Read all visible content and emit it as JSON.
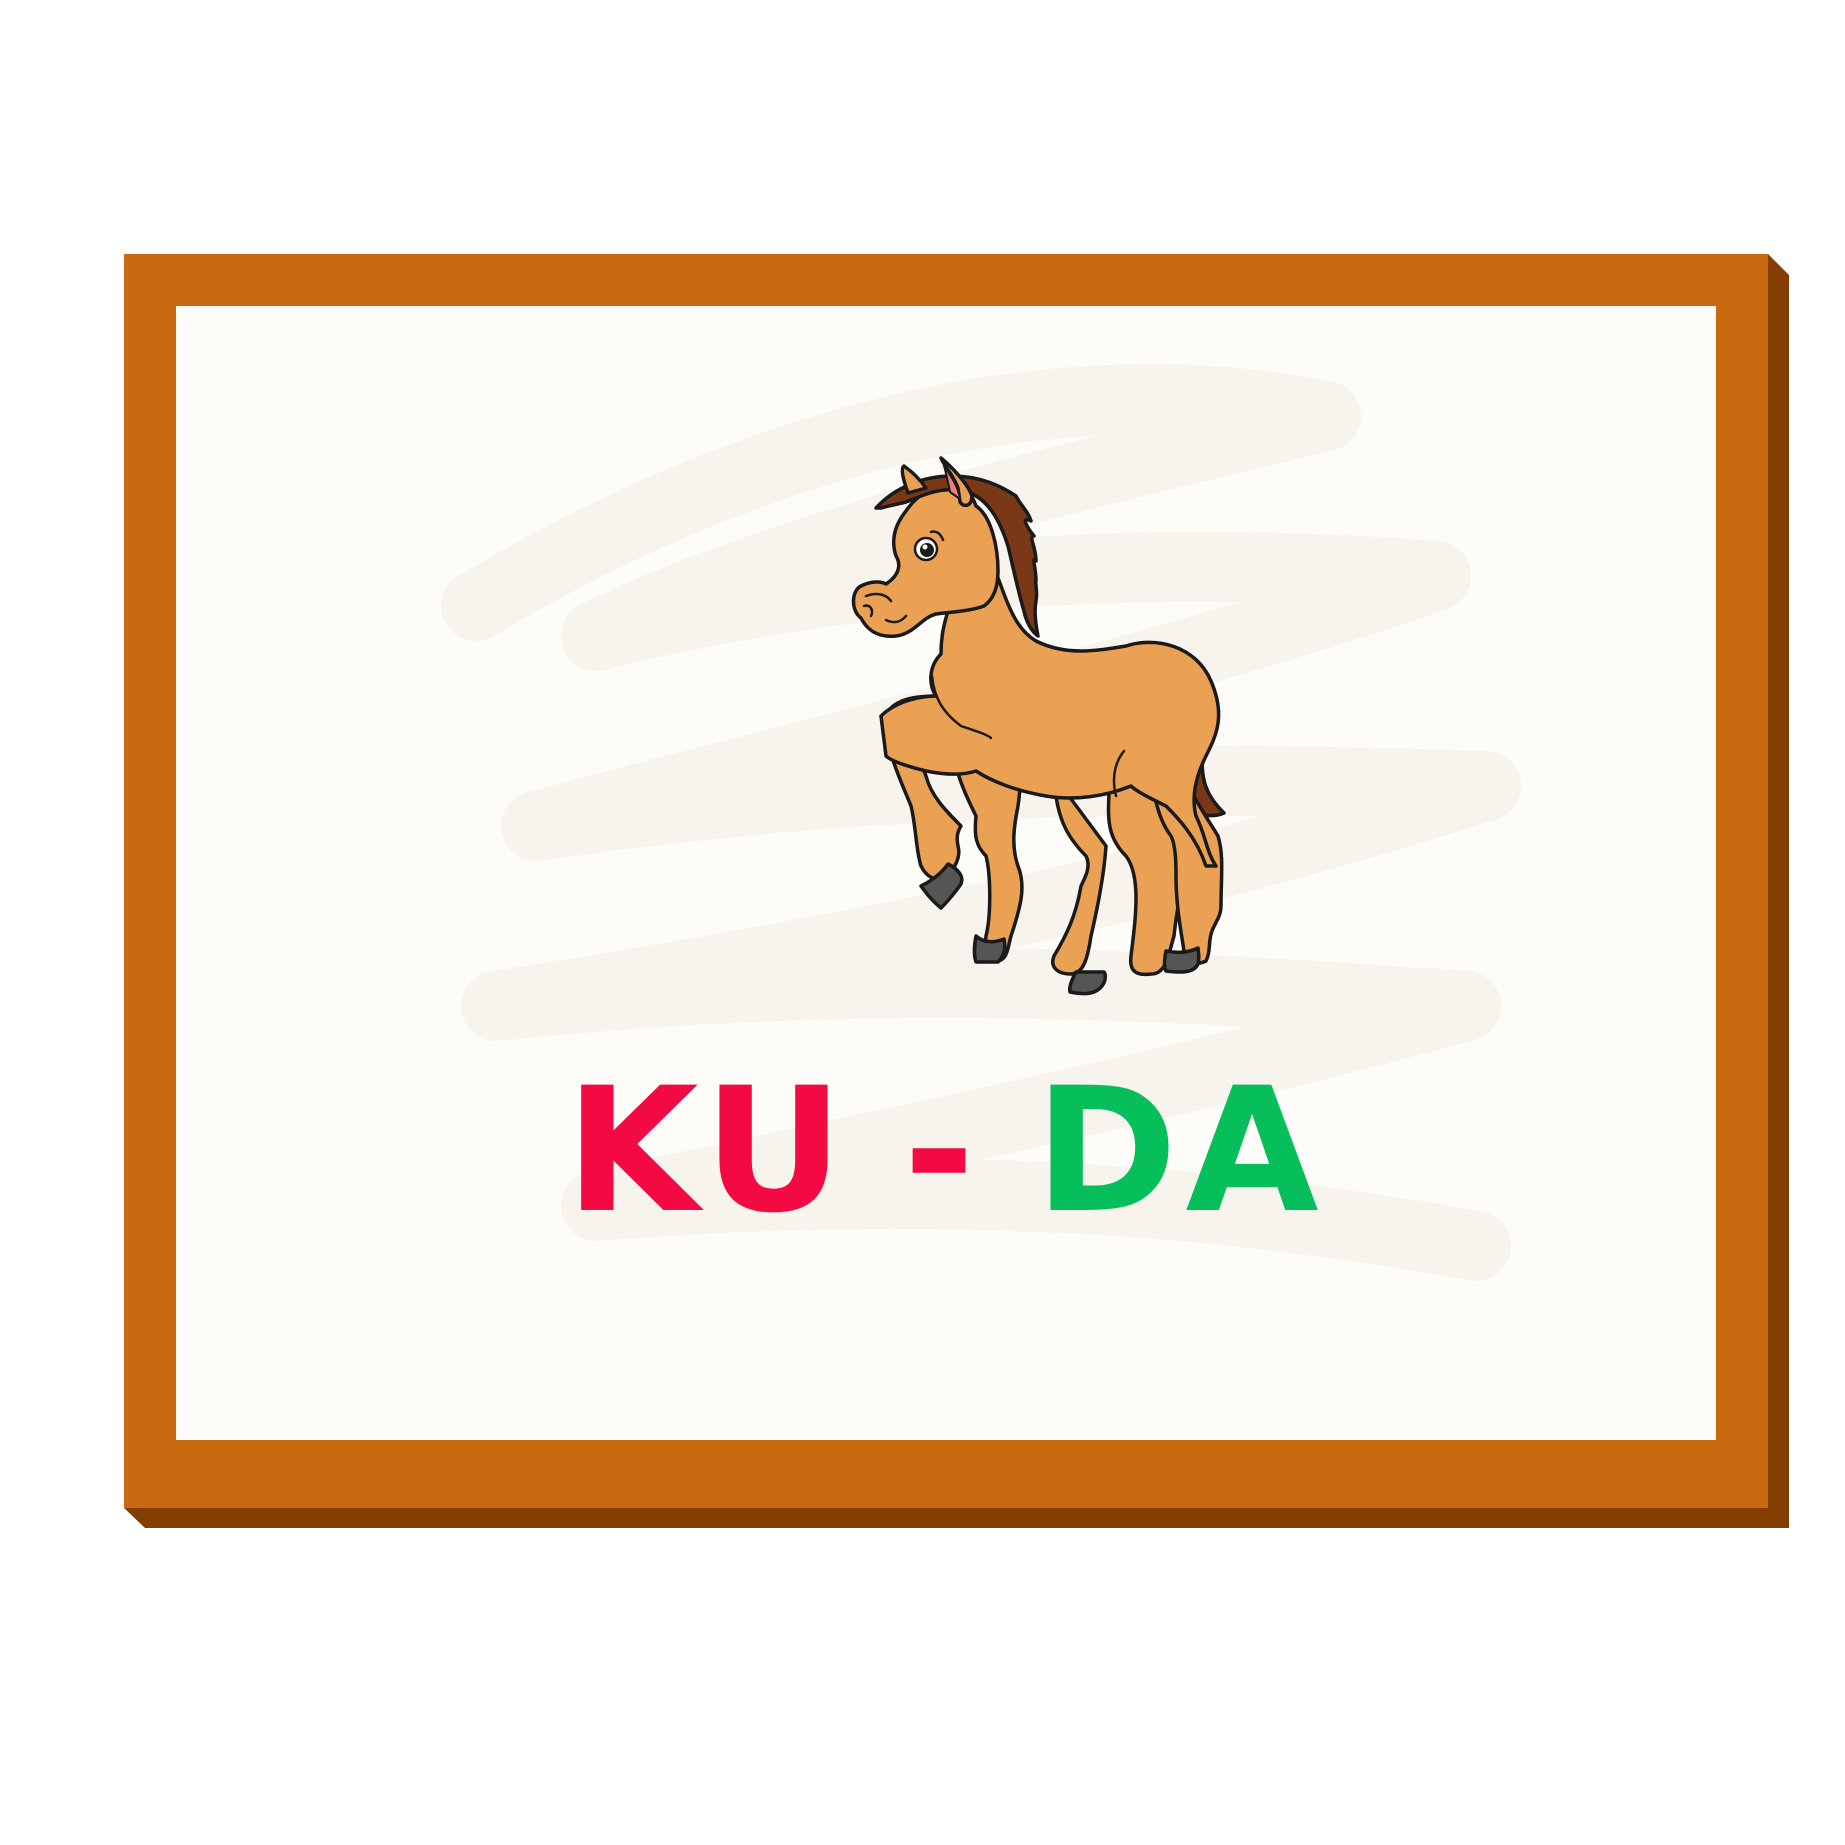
{
  "card": {
    "picture": "horse",
    "word": {
      "first_syllable": "KU",
      "separator": "-",
      "second_syllable": "DA"
    }
  },
  "colors": {
    "frame": "#c96910",
    "frame_shadow": "#843e00",
    "card_background": "#fdfcf9",
    "first_syllable": "#f40a42",
    "separator": "#f40a42",
    "second_syllable": "#06bf5a",
    "horse_body": "#eaa153",
    "horse_mane": "#7a3817",
    "horse_hoof": "#555555"
  }
}
